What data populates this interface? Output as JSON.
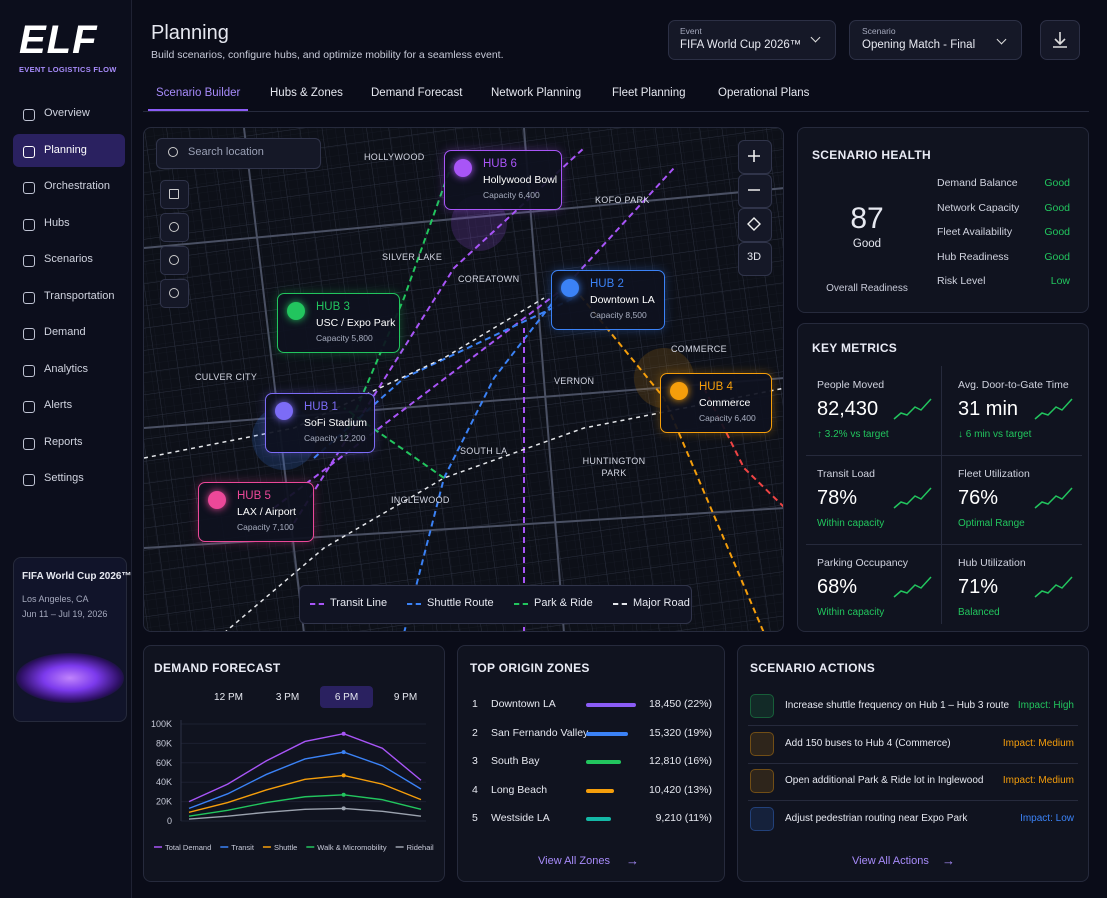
{
  "brand": {
    "logo": "ELF",
    "tagline": "EVENT LOGISTICS FLOW"
  },
  "nav": [
    "Overview",
    "Planning",
    "Orchestration",
    "Hubs",
    "Scenarios",
    "Transportation",
    "Demand",
    "Analytics",
    "Alerts",
    "Reports",
    "Settings"
  ],
  "nav_active": 1,
  "event_card": {
    "title": "FIFA World Cup 2026™",
    "location": "Los Angeles, CA",
    "dates": "Jun 11 – Jul 19, 2026"
  },
  "header": {
    "title": "Planning",
    "subtitle": "Build scenarios, configure hubs, and optimize mobility for a seamless event.",
    "event_label": "Event",
    "event_value": "FIFA World Cup 2026™",
    "scenario_label": "Scenario",
    "scenario_value": "Opening Match - Final"
  },
  "tabs": [
    "Scenario Builder",
    "Hubs & Zones",
    "Demand Forecast",
    "Network Planning",
    "Fleet Planning",
    "Operational Plans"
  ],
  "tab_active": 0,
  "map": {
    "search_placeholder": "Search location",
    "view_3d": "3D",
    "places": [
      "HOLLYWOOD",
      "KOFO PARK",
      "SILVER LAKE",
      "COREATOWN",
      "COMMERCE",
      "CULVER CITY",
      "VERNON",
      "SOUTH LA",
      "HUNTINGTON PARK",
      "INGLEWOOD"
    ],
    "hubs": [
      {
        "id": "HUB 6",
        "name": "Hollywood Bowl",
        "capacity": "Capacity 6,400",
        "color": "#a855f7"
      },
      {
        "id": "HUB 2",
        "name": "Downtown LA",
        "capacity": "Capacity 8,500",
        "color": "#3b82f6"
      },
      {
        "id": "HUB 3",
        "name": "USC / Expo Park",
        "capacity": "Capacity 5,800",
        "color": "#22c55e"
      },
      {
        "id": "HUB 4",
        "name": "Commerce",
        "capacity": "Capacity 6,400",
        "color": "#f59e0b"
      },
      {
        "id": "HUB 1",
        "name": "SoFi Stadium",
        "capacity": "Capacity 12,200",
        "color": "#7c6cf6"
      },
      {
        "id": "HUB 5",
        "name": "LAX / Airport",
        "capacity": "Capacity 7,100",
        "color": "#ec4899"
      }
    ],
    "legend": [
      {
        "name": "Transit Line",
        "color": "#a855f7"
      },
      {
        "name": "Shuttle Route",
        "color": "#3b82f6"
      },
      {
        "name": "Park & Ride",
        "color": "#22c55e"
      },
      {
        "name": "Major Road",
        "color": "#e5e7eb"
      }
    ]
  },
  "health": {
    "title": "SCENARIO HEALTH",
    "score": "87",
    "score_label": "Good",
    "caption": "Overall Readiness",
    "items": [
      {
        "name": "Demand Balance",
        "status": "Good"
      },
      {
        "name": "Network Capacity",
        "status": "Good"
      },
      {
        "name": "Fleet Availability",
        "status": "Good"
      },
      {
        "name": "Hub Readiness",
        "status": "Good"
      },
      {
        "name": "Risk Level",
        "status": "Low"
      }
    ]
  },
  "metrics": {
    "title": "KEY METRICS",
    "items": [
      {
        "label": "People Moved",
        "value": "82,430",
        "sub": "↑ 3.2% vs target"
      },
      {
        "label": "Avg. Door-to-Gate Time",
        "value": "31 min",
        "sub": "↓ 6 min vs target"
      },
      {
        "label": "Transit Load",
        "value": "78%",
        "sub": "Within capacity"
      },
      {
        "label": "Fleet Utilization",
        "value": "76%",
        "sub": "Optimal Range"
      },
      {
        "label": "Parking Occupancy",
        "value": "68%",
        "sub": "Within capacity"
      },
      {
        "label": "Hub Utilization",
        "value": "71%",
        "sub": "Balanced"
      }
    ]
  },
  "demand_forecast": {
    "title": "DEMAND FORECAST",
    "times": [
      "12 PM",
      "3 PM",
      "6 PM",
      "9 PM"
    ],
    "time_active": 2,
    "chart_data": {
      "type": "line",
      "categories": [
        null,
        null,
        null,
        null,
        null,
        null,
        null
      ],
      "series": [
        {
          "name": "Total Demand",
          "color": "#a855f7",
          "values": [
            20000,
            38000,
            62000,
            82000,
            90000,
            75000,
            42000
          ]
        },
        {
          "name": "Transit",
          "color": "#3b82f6",
          "values": [
            13000,
            28000,
            48000,
            64000,
            71000,
            57000,
            33000
          ]
        },
        {
          "name": "Shuttle",
          "color": "#f59e0b",
          "values": [
            9000,
            19000,
            32000,
            43000,
            47000,
            38000,
            22000
          ]
        },
        {
          "name": "Walk & Micromobility",
          "color": "#22c55e",
          "values": [
            5000,
            11000,
            19000,
            25000,
            27000,
            22000,
            12000
          ]
        },
        {
          "name": "Ridehail",
          "color": "#9ca3af",
          "values": [
            2000,
            5000,
            9000,
            12000,
            13000,
            10000,
            5000
          ]
        }
      ],
      "ylim": [
        0,
        100000
      ],
      "yticks": [
        0,
        {
          "value": 20000,
          "label": "20K"
        },
        {
          "value": 40000,
          "label": "40K"
        },
        {
          "value": 60000,
          "label": "60K"
        },
        {
          "value": 80000,
          "label": "80K"
        },
        {
          "value": 100000,
          "label": "100K"
        }
      ],
      "grid": true
    }
  },
  "zones": {
    "title": "TOP ORIGIN ZONES",
    "rows": [
      {
        "rank": "1",
        "name": "Downtown LA",
        "value": 18450,
        "value_label": "18,450 (22%)",
        "color": "#8b5cf6"
      },
      {
        "rank": "2",
        "name": "San Fernando Valley",
        "value": 15320,
        "value_label": "15,320 (19%)",
        "color": "#3b82f6"
      },
      {
        "rank": "3",
        "name": "South Bay",
        "value": 12810,
        "value_label": "12,810 (16%)",
        "color": "#22c55e"
      },
      {
        "rank": "4",
        "name": "Long Beach",
        "value": 10420,
        "value_label": "10,420 (13%)",
        "color": "#f59e0b"
      },
      {
        "rank": "5",
        "name": "Westside LA",
        "value": 9210,
        "value_label": "9,210 (11%)",
        "color": "#14b8a6"
      }
    ],
    "link": "View All Zones"
  },
  "actions": {
    "title": "SCENARIO ACTIONS",
    "items": [
      {
        "text": "Increase shuttle frequency on Hub 1 – Hub 3 route",
        "impact": "Impact: High",
        "color": "#22c55e"
      },
      {
        "text": "Add 150 buses to Hub 4 (Commerce)",
        "impact": "Impact: Medium",
        "color": "#f59e0b"
      },
      {
        "text": "Open additional Park & Ride lot in Inglewood",
        "impact": "Impact: Medium",
        "color": "#f59e0b"
      },
      {
        "text": "Adjust pedestrian routing near Expo Park",
        "impact": "Impact: Low",
        "color": "#3b82f6"
      }
    ],
    "link": "View All Actions"
  }
}
